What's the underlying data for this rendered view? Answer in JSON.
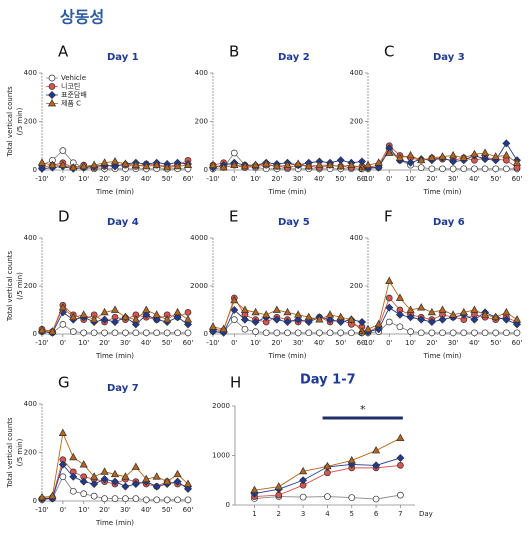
{
  "title": "상동성",
  "chart_data": [
    {
      "type": "line",
      "panel": "A",
      "title": "Day 1",
      "ylabel": [
        "Total vertical counts",
        "(/5 min)"
      ],
      "xlabel": "Time (min)",
      "legend": "upper left",
      "x": [
        -10,
        -5,
        0,
        5,
        10,
        15,
        20,
        25,
        30,
        35,
        40,
        45,
        50,
        55,
        60
      ],
      "xlim": [
        -10,
        60
      ],
      "xticks": [
        {
          "value": -10,
          "label": "-10'"
        },
        {
          "value": 0,
          "label": "0'"
        },
        {
          "value": 10,
          "label": "10'"
        },
        {
          "value": 20,
          "label": "20'"
        },
        {
          "value": 30,
          "label": "30'"
        },
        {
          "value": 40,
          "label": "40'"
        },
        {
          "value": 50,
          "label": "50'"
        },
        {
          "value": 60,
          "label": "60'"
        }
      ],
      "ylim": [
        0,
        400
      ],
      "yticks": [
        0,
        200,
        400
      ],
      "series": [
        {
          "name": "Vehicle",
          "color": "#ffffff",
          "marker": "circle",
          "values": [
            20,
            40,
            80,
            30,
            10,
            5,
            5,
            5,
            5,
            5,
            5,
            5,
            5,
            5,
            5
          ]
        },
        {
          "name": "니코틴",
          "color": "#d9534f",
          "marker": "circle",
          "values": [
            10,
            20,
            30,
            10,
            20,
            10,
            15,
            20,
            20,
            15,
            25,
            20,
            15,
            20,
            40
          ]
        },
        {
          "name": "표준담배",
          "color": "#1f3a93",
          "marker": "diamond",
          "values": [
            5,
            10,
            15,
            5,
            10,
            15,
            20,
            15,
            25,
            30,
            25,
            30,
            25,
            30,
            25
          ]
        },
        {
          "name": "제품 C",
          "color": "#b5651d",
          "marker": "triangle",
          "values": [
            30,
            20,
            20,
            10,
            15,
            20,
            30,
            35,
            25,
            20,
            15,
            20,
            10,
            15,
            20
          ]
        }
      ]
    },
    {
      "type": "line",
      "panel": "B",
      "title": "Day 2",
      "xlabel": "Time (min)",
      "x": [
        -10,
        -5,
        0,
        5,
        10,
        15,
        20,
        25,
        30,
        35,
        40,
        45,
        50,
        55,
        60
      ],
      "xlim": [
        -10,
        60
      ],
      "xticks": [
        {
          "value": -10,
          "label": "-10'"
        },
        {
          "value": 0,
          "label": "0'"
        },
        {
          "value": 10,
          "label": "10'"
        },
        {
          "value": 20,
          "label": "20'"
        },
        {
          "value": 30,
          "label": "30'"
        },
        {
          "value": 40,
          "label": "40'"
        },
        {
          "value": 50,
          "label": "50'"
        },
        {
          "value": 60,
          "label": "60'"
        }
      ],
      "ylim": [
        0,
        400
      ],
      "yticks": [
        0,
        200,
        400
      ],
      "series": [
        {
          "color": "#ffffff",
          "marker": "circle",
          "values": [
            5,
            10,
            70,
            20,
            10,
            5,
            5,
            5,
            5,
            5,
            5,
            5,
            5,
            5,
            5
          ]
        },
        {
          "color": "#d9534f",
          "marker": "circle",
          "values": [
            20,
            30,
            20,
            10,
            15,
            20,
            15,
            10,
            20,
            15,
            10,
            20,
            15,
            10,
            15
          ]
        },
        {
          "color": "#1f3a93",
          "marker": "diamond",
          "values": [
            10,
            20,
            30,
            20,
            20,
            30,
            25,
            30,
            20,
            30,
            35,
            30,
            40,
            30,
            35
          ]
        },
        {
          "color": "#b5651d",
          "marker": "triangle",
          "values": [
            20,
            10,
            20,
            15,
            20,
            25,
            15,
            20,
            25,
            15,
            20,
            20,
            15,
            20,
            10
          ]
        }
      ]
    },
    {
      "type": "line",
      "panel": "C",
      "title": "Day 3",
      "xlabel": "Time (min)",
      "x": [
        -10,
        -5,
        0,
        5,
        10,
        15,
        20,
        25,
        30,
        35,
        40,
        45,
        50,
        55,
        60
      ],
      "xlim": [
        -10,
        60
      ],
      "xticks": [
        {
          "value": -10,
          "label": "-10'"
        },
        {
          "value": 0,
          "label": "0'"
        },
        {
          "value": 10,
          "label": "10'"
        },
        {
          "value": 20,
          "label": "20'"
        },
        {
          "value": 30,
          "label": "30'"
        },
        {
          "value": 40,
          "label": "40'"
        },
        {
          "value": 50,
          "label": "50'"
        },
        {
          "value": 60,
          "label": "60'"
        }
      ],
      "ylim": [
        0,
        400
      ],
      "yticks": [
        0,
        200,
        400
      ],
      "series": [
        {
          "color": "#ffffff",
          "marker": "circle",
          "values": [
            5,
            10,
            80,
            40,
            20,
            10,
            5,
            5,
            5,
            5,
            5,
            5,
            5,
            5,
            5
          ]
        },
        {
          "color": "#d9534f",
          "marker": "circle",
          "values": [
            10,
            20,
            100,
            60,
            50,
            40,
            50,
            45,
            40,
            50,
            40,
            50,
            45,
            40,
            10
          ]
        },
        {
          "color": "#1f3a93",
          "marker": "diamond",
          "values": [
            10,
            10,
            90,
            40,
            30,
            45,
            40,
            50,
            35,
            40,
            60,
            45,
            40,
            110,
            40
          ]
        },
        {
          "color": "#b5651d",
          "marker": "triangle",
          "values": [
            20,
            30,
            70,
            50,
            60,
            40,
            50,
            55,
            60,
            50,
            65,
            70,
            55,
            60,
            30
          ]
        }
      ]
    },
    {
      "type": "line",
      "panel": "D",
      "title": "Day 4",
      "ylabel": [
        "Total vertical counts",
        "(/5 min)"
      ],
      "xlabel": "Time (min)",
      "x": [
        -10,
        -5,
        0,
        5,
        10,
        15,
        20,
        25,
        30,
        35,
        40,
        45,
        50,
        55,
        60
      ],
      "xlim": [
        -10,
        60
      ],
      "xticks": [
        {
          "value": -10,
          "label": "-10'"
        },
        {
          "value": 0,
          "label": "0'"
        },
        {
          "value": 10,
          "label": "10'"
        },
        {
          "value": 20,
          "label": "20'"
        },
        {
          "value": 30,
          "label": "30'"
        },
        {
          "value": 40,
          "label": "40'"
        },
        {
          "value": 50,
          "label": "50'"
        },
        {
          "value": 60,
          "label": "60'"
        }
      ],
      "ylim": [
        0,
        400
      ],
      "yticks": [
        0,
        200,
        400
      ],
      "series": [
        {
          "color": "#ffffff",
          "marker": "circle",
          "values": [
            10,
            5,
            40,
            10,
            5,
            5,
            5,
            5,
            5,
            5,
            5,
            5,
            5,
            5,
            5
          ]
        },
        {
          "color": "#d9534f",
          "marker": "circle",
          "values": [
            20,
            10,
            120,
            80,
            60,
            80,
            50,
            70,
            60,
            80,
            70,
            60,
            80,
            70,
            90
          ]
        },
        {
          "color": "#1f3a93",
          "marker": "diamond",
          "values": [
            10,
            5,
            90,
            60,
            70,
            50,
            60,
            50,
            70,
            40,
            80,
            60,
            50,
            70,
            40
          ]
        },
        {
          "color": "#b5651d",
          "marker": "triangle",
          "values": [
            15,
            10,
            110,
            70,
            80,
            60,
            90,
            100,
            70,
            60,
            100,
            80,
            60,
            90,
            60
          ]
        }
      ]
    },
    {
      "type": "line",
      "panel": "E",
      "title": "Day 5",
      "xlabel": "Time (min)",
      "x": [
        -10,
        -5,
        0,
        5,
        10,
        15,
        20,
        25,
        30,
        35,
        40,
        45,
        50,
        55,
        60
      ],
      "xlim": [
        -10,
        60
      ],
      "xticks": [
        {
          "value": -10,
          "label": "-10'"
        },
        {
          "value": 0,
          "label": "0'"
        },
        {
          "value": 10,
          "label": "10'"
        },
        {
          "value": 20,
          "label": "20'"
        },
        {
          "value": 30,
          "label": "30'"
        },
        {
          "value": 40,
          "label": "40'"
        },
        {
          "value": 50,
          "label": "50'"
        },
        {
          "value": 60,
          "label": "60'"
        }
      ],
      "ylim": [
        0,
        4000
      ],
      "yticks": [
        0,
        2000,
        4000
      ],
      "series": [
        {
          "color": "#ffffff",
          "marker": "circle",
          "values": [
            150,
            100,
            600,
            200,
            100,
            50,
            50,
            50,
            50,
            50,
            50,
            50,
            50,
            50,
            50
          ]
        },
        {
          "color": "#d9534f",
          "marker": "circle",
          "values": [
            200,
            150,
            1500,
            800,
            600,
            500,
            700,
            600,
            500,
            600,
            700,
            500,
            600,
            400,
            300
          ]
        },
        {
          "color": "#1f3a93",
          "marker": "diamond",
          "values": [
            100,
            50,
            1000,
            600,
            500,
            700,
            600,
            500,
            600,
            500,
            700,
            600,
            500,
            600,
            500
          ]
        },
        {
          "color": "#b5651d",
          "marker": "triangle",
          "values": [
            300,
            200,
            1400,
            1000,
            900,
            800,
            1000,
            900,
            800,
            700,
            600,
            800,
            700,
            600,
            100
          ]
        }
      ]
    },
    {
      "type": "line",
      "panel": "F",
      "title": "Day 6",
      "xlabel": "Time (min)",
      "x": [
        -10,
        -5,
        0,
        5,
        10,
        15,
        20,
        25,
        30,
        35,
        40,
        45,
        50,
        55,
        60
      ],
      "xlim": [
        -10,
        60
      ],
      "xticks": [
        {
          "value": -10,
          "label": "-10'"
        },
        {
          "value": 0,
          "label": "0'"
        },
        {
          "value": 10,
          "label": "10'"
        },
        {
          "value": 20,
          "label": "20'"
        },
        {
          "value": 30,
          "label": "30'"
        },
        {
          "value": 40,
          "label": "40'"
        },
        {
          "value": 50,
          "label": "50'"
        },
        {
          "value": 60,
          "label": "60'"
        }
      ],
      "ylim": [
        0,
        400
      ],
      "yticks": [
        0,
        200,
        400
      ],
      "series": [
        {
          "color": "#ffffff",
          "marker": "circle",
          "values": [
            5,
            10,
            50,
            30,
            10,
            5,
            5,
            5,
            5,
            5,
            5,
            5,
            5,
            5,
            5
          ]
        },
        {
          "color": "#d9534f",
          "marker": "circle",
          "values": [
            10,
            30,
            150,
            100,
            80,
            70,
            60,
            80,
            70,
            60,
            80,
            70,
            60,
            70,
            50
          ]
        },
        {
          "color": "#1f3a93",
          "marker": "diamond",
          "values": [
            10,
            20,
            110,
            80,
            70,
            60,
            50,
            60,
            70,
            80,
            60,
            90,
            70,
            60,
            40
          ]
        },
        {
          "color": "#b5651d",
          "marker": "triangle",
          "values": [
            20,
            40,
            220,
            150,
            100,
            110,
            90,
            100,
            80,
            90,
            100,
            80,
            70,
            90,
            60
          ]
        }
      ]
    },
    {
      "type": "line",
      "panel": "G",
      "title": "Day 7",
      "ylabel": [
        "Total vertical counts",
        "(/5 min)"
      ],
      "xlabel": "Time (min)",
      "x": [
        -10,
        -5,
        0,
        5,
        10,
        15,
        20,
        25,
        30,
        35,
        40,
        45,
        50,
        55,
        60
      ],
      "xlim": [
        -10,
        60
      ],
      "xticks": [
        {
          "value": -10,
          "label": "-10'"
        },
        {
          "value": 0,
          "label": "0'"
        },
        {
          "value": 10,
          "label": "10'"
        },
        {
          "value": 20,
          "label": "20'"
        },
        {
          "value": 30,
          "label": "30'"
        },
        {
          "value": 40,
          "label": "40'"
        },
        {
          "value": 50,
          "label": "50'"
        },
        {
          "value": 60,
          "label": "60'"
        }
      ],
      "ylim": [
        0,
        400
      ],
      "yticks": [
        0,
        200,
        400
      ],
      "series": [
        {
          "color": "#ffffff",
          "marker": "circle",
          "values": [
            5,
            10,
            100,
            40,
            30,
            20,
            10,
            10,
            10,
            10,
            5,
            5,
            5,
            5,
            5
          ]
        },
        {
          "color": "#d9534f",
          "marker": "circle",
          "values": [
            10,
            15,
            170,
            120,
            100,
            90,
            80,
            70,
            90,
            80,
            70,
            60,
            80,
            70,
            60
          ]
        },
        {
          "color": "#1f3a93",
          "marker": "diamond",
          "values": [
            10,
            10,
            150,
            100,
            80,
            70,
            90,
            80,
            60,
            70,
            80,
            60,
            70,
            80,
            50
          ]
        },
        {
          "color": "#b5651d",
          "marker": "triangle",
          "values": [
            15,
            20,
            280,
            180,
            150,
            100,
            120,
            110,
            100,
            140,
            90,
            100,
            80,
            110,
            70
          ]
        }
      ]
    },
    {
      "type": "line",
      "panel": "H",
      "title": "Day 1-7",
      "xlabel": "Day",
      "annotation": "*",
      "x": [
        1,
        2,
        3,
        4,
        5,
        6,
        7
      ],
      "xlim": [
        0.2,
        7.6
      ],
      "xticks": [
        1,
        2,
        3,
        4,
        5,
        6,
        7
      ],
      "ylim": [
        0,
        2000
      ],
      "yticks": [
        0,
        1000,
        2000
      ],
      "series": [
        {
          "color": "#ffffff",
          "marker": "circle",
          "values": [
            130,
            170,
            160,
            170,
            150,
            120,
            200
          ]
        },
        {
          "color": "#d9534f",
          "marker": "circle",
          "values": [
            170,
            200,
            400,
            650,
            750,
            750,
            800
          ]
        },
        {
          "color": "#1f3a93",
          "marker": "diamond",
          "values": [
            230,
            320,
            500,
            770,
            820,
            800,
            950
          ]
        },
        {
          "color": "#b5651d",
          "marker": "triangle",
          "values": [
            300,
            370,
            680,
            780,
            900,
            1100,
            1350
          ]
        }
      ]
    }
  ]
}
